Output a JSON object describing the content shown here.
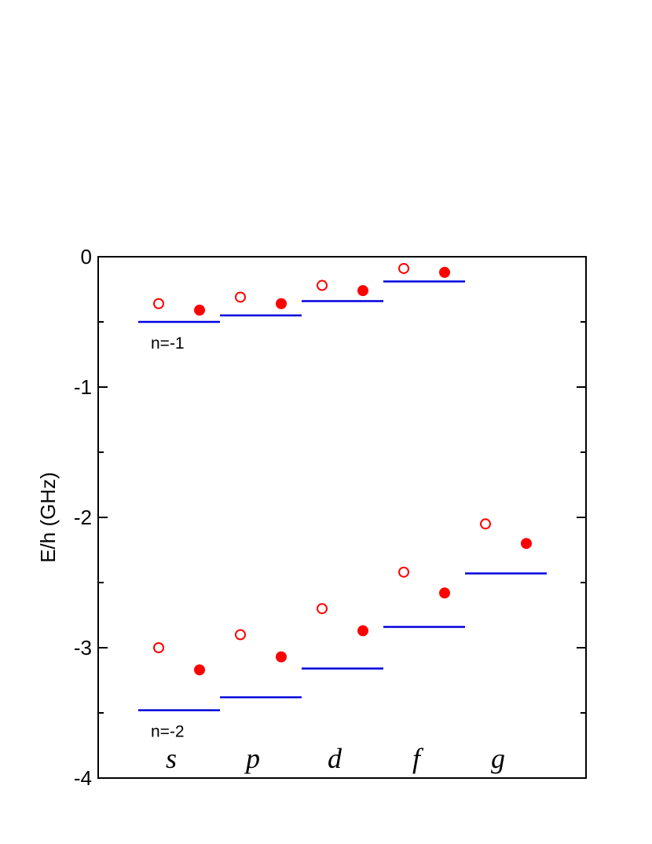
{
  "chart_data": {
    "type": "scatter",
    "title": "",
    "xlabel": "",
    "ylabel": "E/h (GHz)",
    "ylim": [
      -4,
      0
    ],
    "yticks": [
      0,
      -1,
      -2,
      -3,
      -4
    ],
    "categories": [
      "s",
      "p",
      "d",
      "f",
      "g"
    ],
    "grid": false,
    "colors": {
      "points": "#ff0000",
      "levels": "#0000dd",
      "axes": "#000000"
    },
    "levels": [
      {
        "annotation": "n=-1",
        "values": [
          -0.5,
          -0.45,
          -0.34,
          -0.19,
          null
        ]
      },
      {
        "annotation": "n=-2",
        "values": [
          -3.48,
          -3.38,
          -3.16,
          -2.84,
          -2.43
        ]
      }
    ],
    "series": [
      {
        "marker": "open-circle",
        "values_n1": [
          -0.36,
          -0.31,
          -0.22,
          -0.09,
          null
        ],
        "values_n2": [
          -3.0,
          -2.9,
          -2.7,
          -2.42,
          -2.05
        ]
      },
      {
        "marker": "filled-circle",
        "values_n1": [
          -0.41,
          -0.36,
          -0.26,
          -0.12,
          null
        ],
        "values_n2": [
          -3.17,
          -3.07,
          -2.87,
          -2.58,
          -2.2
        ]
      }
    ]
  }
}
